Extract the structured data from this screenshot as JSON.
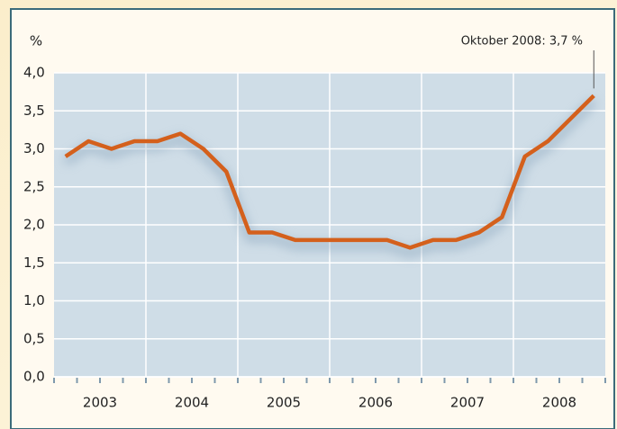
{
  "chart_data": {
    "type": "line",
    "y_label": "%",
    "annotation": "Oktober 2008: 3,7 %",
    "x": [
      2003.125,
      2003.375,
      2003.625,
      2003.875,
      2004.125,
      2004.375,
      2004.625,
      2004.875,
      2005.125,
      2005.375,
      2005.625,
      2005.875,
      2006.125,
      2006.375,
      2006.625,
      2006.875,
      2007.125,
      2007.375,
      2007.625,
      2007.875,
      2008.125,
      2008.375,
      2008.625,
      2008.875
    ],
    "series": [
      {
        "color": "#d4601c",
        "values": [
          2.9,
          3.1,
          3.0,
          3.1,
          3.1,
          3.2,
          3.0,
          2.7,
          1.9,
          1.9,
          1.8,
          1.8,
          1.8,
          1.8,
          1.8,
          1.7,
          1.8,
          1.8,
          1.9,
          2.1,
          2.9,
          3.1,
          3.4,
          3.7
        ]
      }
    ],
    "xlim": [
      2003,
      2009
    ],
    "xticks": [
      {
        "value": 2003.5,
        "label": "2003"
      },
      {
        "value": 2004.5,
        "label": "2004"
      },
      {
        "value": 2005.5,
        "label": "2005"
      },
      {
        "value": 2006.5,
        "label": "2006"
      },
      {
        "value": 2007.5,
        "label": "2007"
      },
      {
        "value": 2008.5,
        "label": "2008"
      }
    ],
    "ylim": [
      0,
      4
    ],
    "yticks": [
      {
        "value": 0,
        "label": "0,0"
      },
      {
        "value": 0.5,
        "label": "0,5"
      },
      {
        "value": 1,
        "label": "1,0"
      },
      {
        "value": 1.5,
        "label": "1,5"
      },
      {
        "value": 2,
        "label": "2,0"
      },
      {
        "value": 2.5,
        "label": "2,5"
      },
      {
        "value": 3,
        "label": "3,0"
      },
      {
        "value": 3.5,
        "label": "3,5"
      },
      {
        "value": 4,
        "label": "4,0"
      }
    ],
    "grid": true
  }
}
